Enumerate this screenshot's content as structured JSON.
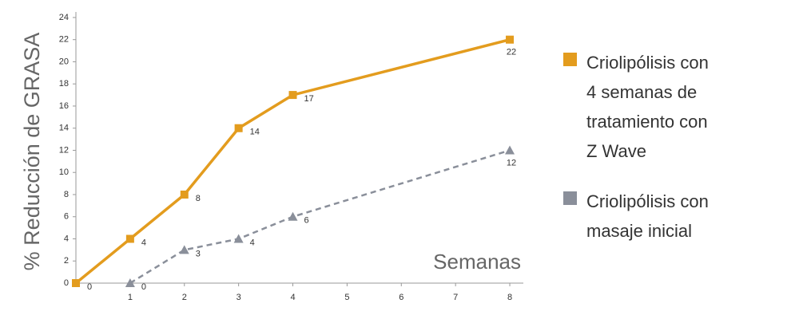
{
  "chart_data": {
    "type": "line",
    "ylabel": "% Reducción de GRASA",
    "annotation": "Semanas",
    "xlim": [
      0,
      8.25
    ],
    "xticks": [
      1,
      2,
      3,
      4,
      5,
      6,
      7,
      8
    ],
    "ylim": [
      0,
      24.5
    ],
    "yticks": [
      0,
      2,
      4,
      6,
      8,
      10,
      12,
      14,
      16,
      18,
      20,
      22,
      24
    ],
    "legend": "right",
    "series": [
      {
        "name": "Criolipólisis con 4 semanas de tratamiento con Z Wave",
        "color": "#e39c1e",
        "marker": "square",
        "dash": false,
        "x": [
          0,
          1,
          2,
          3,
          4,
          8
        ],
        "values": [
          0,
          4,
          8,
          14,
          17,
          22
        ]
      },
      {
        "name": "Criolipólisis con masaje inicial",
        "color": "#8a8f9a",
        "marker": "triangle",
        "dash": true,
        "x": [
          1,
          2,
          3,
          4,
          8
        ],
        "values": [
          0,
          3,
          4,
          6,
          12
        ]
      }
    ]
  }
}
